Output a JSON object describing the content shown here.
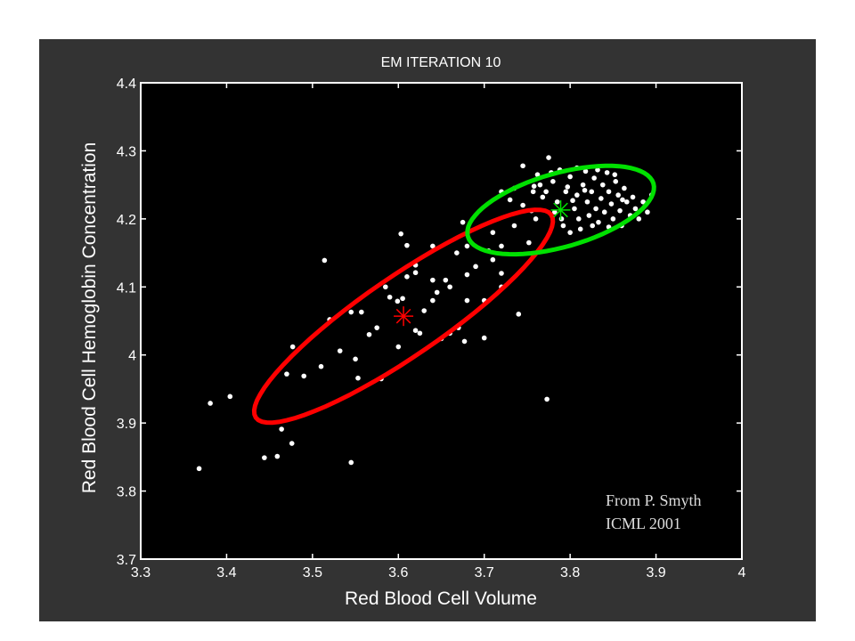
{
  "chart_data": {
    "type": "scatter",
    "title": "EM ITERATION 10",
    "xlabel": "Red Blood Cell Volume",
    "ylabel": "Red Blood Cell Hemoglobin Concentration",
    "xlim": [
      3.3,
      4.0
    ],
    "ylim": [
      3.7,
      4.4
    ],
    "xticks": [
      "3.3",
      "3.4",
      "3.5",
      "3.6",
      "3.7",
      "3.8",
      "3.9",
      "4"
    ],
    "yticks": [
      "3.7",
      "3.8",
      "3.9",
      "4",
      "4.1",
      "4.2",
      "4.3",
      "4.4"
    ],
    "grid": false,
    "annotation": [
      "From P. Smyth",
      "ICML 2001"
    ],
    "colors": {
      "background": "#000000",
      "panel": "#333333",
      "points": "#ffffff",
      "component1": "#ff0000",
      "component2": "#00e000"
    },
    "points": [
      [
        3.368,
        3.833
      ],
      [
        3.381,
        3.929
      ],
      [
        3.404,
        3.939
      ],
      [
        3.444,
        3.849
      ],
      [
        3.459,
        3.851
      ],
      [
        3.476,
        3.87
      ],
      [
        3.545,
        3.842
      ],
      [
        3.773,
        3.935
      ],
      [
        3.464,
        3.891
      ],
      [
        3.47,
        3.972
      ],
      [
        3.49,
        3.969
      ],
      [
        3.477,
        4.012
      ],
      [
        3.514,
        4.139
      ],
      [
        3.52,
        4.052
      ],
      [
        3.545,
        4.063
      ],
      [
        3.557,
        4.063
      ],
      [
        3.51,
        3.983
      ],
      [
        3.532,
        4.006
      ],
      [
        3.55,
        3.994
      ],
      [
        3.553,
        3.966
      ],
      [
        3.58,
        3.965
      ],
      [
        3.575,
        4.04
      ],
      [
        3.59,
        4.085
      ],
      [
        3.599,
        4.079
      ],
      [
        3.605,
        4.083
      ],
      [
        3.6,
        4.012
      ],
      [
        3.62,
        4.036
      ],
      [
        3.625,
        4.032
      ],
      [
        3.603,
        4.178
      ],
      [
        3.61,
        4.161
      ],
      [
        3.62,
        4.132
      ],
      [
        3.62,
        4.121
      ],
      [
        3.64,
        4.08
      ],
      [
        3.645,
        4.092
      ],
      [
        3.65,
        4.024
      ],
      [
        3.66,
        4.032
      ],
      [
        3.67,
        4.04
      ],
      [
        3.66,
        4.1
      ],
      [
        3.64,
        4.11
      ],
      [
        3.64,
        4.16
      ],
      [
        3.68,
        4.118
      ],
      [
        3.69,
        4.13
      ],
      [
        3.675,
        4.195
      ],
      [
        3.68,
        4.16
      ],
      [
        3.705,
        4.153
      ],
      [
        3.71,
        4.14
      ],
      [
        3.72,
        4.12
      ],
      [
        3.72,
        4.16
      ],
      [
        3.68,
        4.08
      ],
      [
        3.7,
        4.08
      ],
      [
        3.72,
        4.1
      ],
      [
        3.74,
        4.06
      ],
      [
        3.7,
        4.025
      ],
      [
        3.677,
        4.02
      ],
      [
        3.655,
        4.11
      ],
      [
        3.668,
        4.15
      ],
      [
        3.61,
        4.115
      ],
      [
        3.585,
        4.1
      ],
      [
        3.566,
        4.03
      ],
      [
        3.63,
        4.065
      ],
      [
        3.71,
        4.18
      ],
      [
        3.735,
        4.19
      ],
      [
        3.752,
        4.165
      ],
      [
        3.76,
        4.2
      ],
      [
        3.73,
        4.228
      ],
      [
        3.745,
        4.22
      ],
      [
        3.755,
        4.212
      ],
      [
        3.745,
        4.278
      ],
      [
        3.775,
        4.29
      ],
      [
        3.765,
        4.25
      ],
      [
        3.772,
        4.24
      ],
      [
        3.78,
        4.255
      ],
      [
        3.785,
        4.225
      ],
      [
        3.79,
        4.2
      ],
      [
        3.792,
        4.19
      ],
      [
        3.795,
        4.24
      ],
      [
        3.8,
        4.262
      ],
      [
        3.805,
        4.215
      ],
      [
        3.808,
        4.235
      ],
      [
        3.81,
        4.2
      ],
      [
        3.815,
        4.25
      ],
      [
        3.818,
        4.27
      ],
      [
        3.82,
        4.225
      ],
      [
        3.822,
        4.205
      ],
      [
        3.825,
        4.24
      ],
      [
        3.828,
        4.26
      ],
      [
        3.83,
        4.215
      ],
      [
        3.833,
        4.195
      ],
      [
        3.836,
        4.23
      ],
      [
        3.838,
        4.25
      ],
      [
        3.84,
        4.21
      ],
      [
        3.843,
        4.268
      ],
      [
        3.845,
        4.24
      ],
      [
        3.848,
        4.222
      ],
      [
        3.85,
        4.2
      ],
      [
        3.853,
        4.255
      ],
      [
        3.856,
        4.235
      ],
      [
        3.858,
        4.212
      ],
      [
        3.86,
        4.19
      ],
      [
        3.863,
        4.245
      ],
      [
        3.866,
        4.225
      ],
      [
        3.87,
        4.205
      ],
      [
        3.873,
        4.232
      ],
      [
        3.876,
        4.215
      ],
      [
        3.88,
        4.2
      ],
      [
        3.885,
        4.225
      ],
      [
        3.89,
        4.21
      ],
      [
        3.895,
        4.235
      ],
      [
        3.8,
        4.18
      ],
      [
        3.812,
        4.185
      ],
      [
        3.826,
        4.19
      ],
      [
        3.845,
        4.188
      ],
      [
        3.782,
        4.21
      ],
      [
        3.797,
        4.247
      ],
      [
        3.803,
        4.227
      ],
      [
        3.778,
        4.268
      ],
      [
        3.788,
        4.272
      ],
      [
        3.817,
        4.242
      ],
      [
        3.832,
        4.272
      ],
      [
        3.852,
        4.265
      ],
      [
        3.861,
        4.228
      ],
      [
        3.768,
        4.232
      ],
      [
        3.758,
        4.248
      ],
      [
        3.757,
        4.24
      ],
      [
        3.72,
        4.24
      ],
      [
        3.735,
        4.245
      ],
      [
        3.762,
        4.265
      ],
      [
        3.808,
        4.275
      ]
    ],
    "components": [
      {
        "color": "#ff0000",
        "mean": [
          3.606,
          4.057
        ],
        "axis1": [
          0.172,
          0.149
        ],
        "axis2": [
          0.026,
          -0.048
        ]
      },
      {
        "color": "#00e000",
        "mean": [
          3.789,
          4.213
        ],
        "axis1": [
          0.108,
          0.039
        ],
        "axis2": [
          0.012,
          -0.052
        ]
      }
    ]
  }
}
